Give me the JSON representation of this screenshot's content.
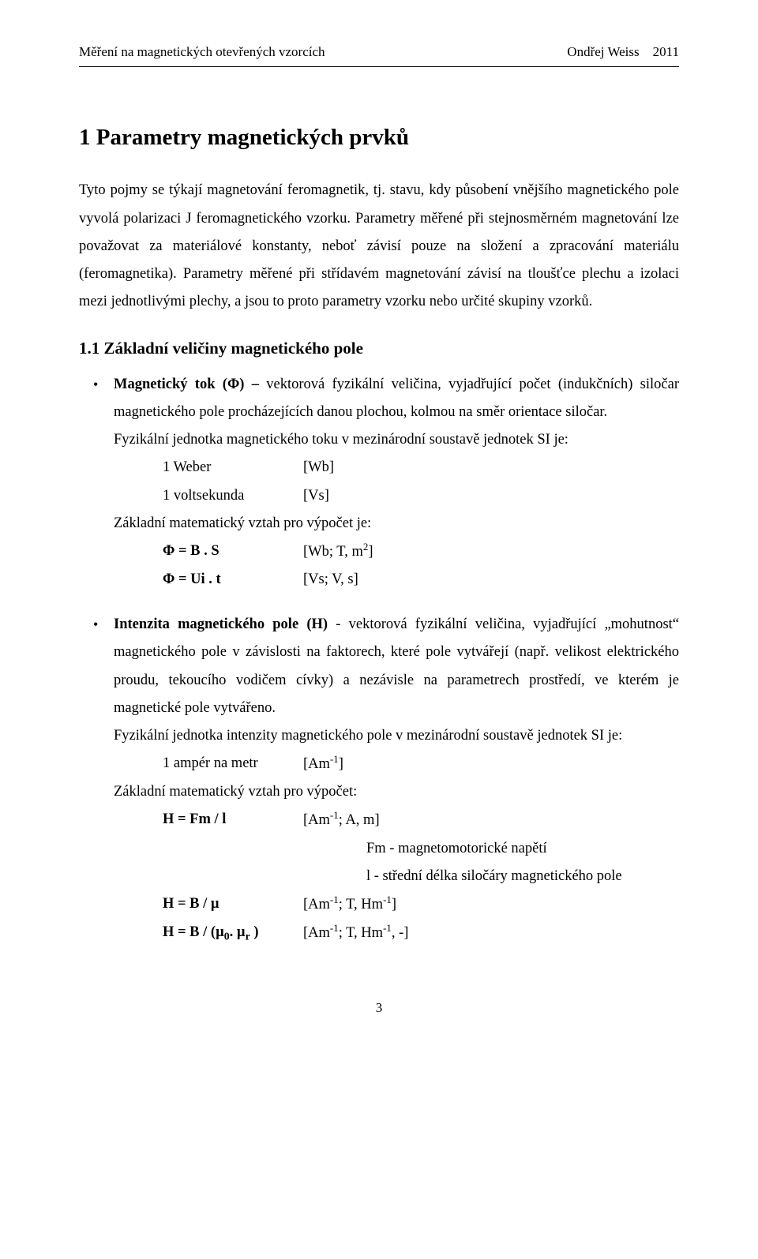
{
  "header": {
    "left": "Měření na magnetických otevřených vzorcích",
    "right": "Ondřej Weiss    2011"
  },
  "title": "1  Parametry magnetických prvků",
  "intro": "Tyto pojmy se týkají magnetování feromagnetik, tj. stavu, kdy působení vnějšího magnetického pole vyvolá polarizaci J feromagnetického vzorku. Parametry měřené při stejnosměrném magnetování lze považovat za materiálové konstanty, neboť závisí pouze na složení a zpracování materiálu (feromagnetika). Parametry měřené při střídavém magnetování závisí na tloušťce plechu a izolaci mezi jednotlivými plechy, a jsou to proto parametry vzorku nebo určité skupiny vzorků.",
  "sub": "1.1  Základní veličiny magnetického pole",
  "flux": {
    "head_b": "Magnetický tok (Φ) –",
    "head_rest": " vektorová fyzikální veličina, vyjadřující počet (indukčních) siločar magnetického pole procházejících danou plochou, kolmou na směr orientace siločar.",
    "unit_line": "Fyzikální jednotka magnetického toku v mezinárodní soustavě jednotek SI je:",
    "r1c1": "1 Weber",
    "r1c2": "[Wb]",
    "r2c1": "1 voltsekunda",
    "r2c2": "[Vs]",
    "math_line": "Základní matematický vztah pro výpočet je:",
    "r3c1": "Φ = B . S",
    "r3c2": "[Wb; T, m²]",
    "r4c1": "Φ = Ui . t",
    "r4c2": "[Vs; V, s]"
  },
  "intensity": {
    "head_b": "Intenzita magnetického pole (H) ",
    "head_rest": "-  vektorová fyzikální veličina, vyjadřující „mohutnost“ magnetického pole v závislosti na faktorech, které pole vytvářejí (např. velikost elektrického proudu, tekoucího vodičem cívky) a nezávisle na parametrech prostředí, ve kterém je magnetické pole vytvářeno.",
    "unit_line": "Fyzikální jednotka intenzity magnetického pole v mezinárodní soustavě jednotek SI je:",
    "r1c1": "1 ampér na metr",
    "r1c2": "[Am⁻¹]",
    "math_line": "Základní matematický vztah pro výpočet:",
    "r2c1": "H = Fm / l",
    "r2c2": "[Am⁻¹; A, m]",
    "note1": "Fm - magnetomotorické napětí",
    "note2": "l - střední délka siločáry magnetického pole",
    "r3c1": "H = B / µ",
    "r3c2": "[Am⁻¹; T, Hm⁻¹]",
    "r4c1_a": "H = B / (µ",
    "r4c1_b": ". µ",
    "r4c1_c": " )",
    "r4c2": "[Am⁻¹; T, Hm⁻¹, -]"
  },
  "page_number": "3"
}
